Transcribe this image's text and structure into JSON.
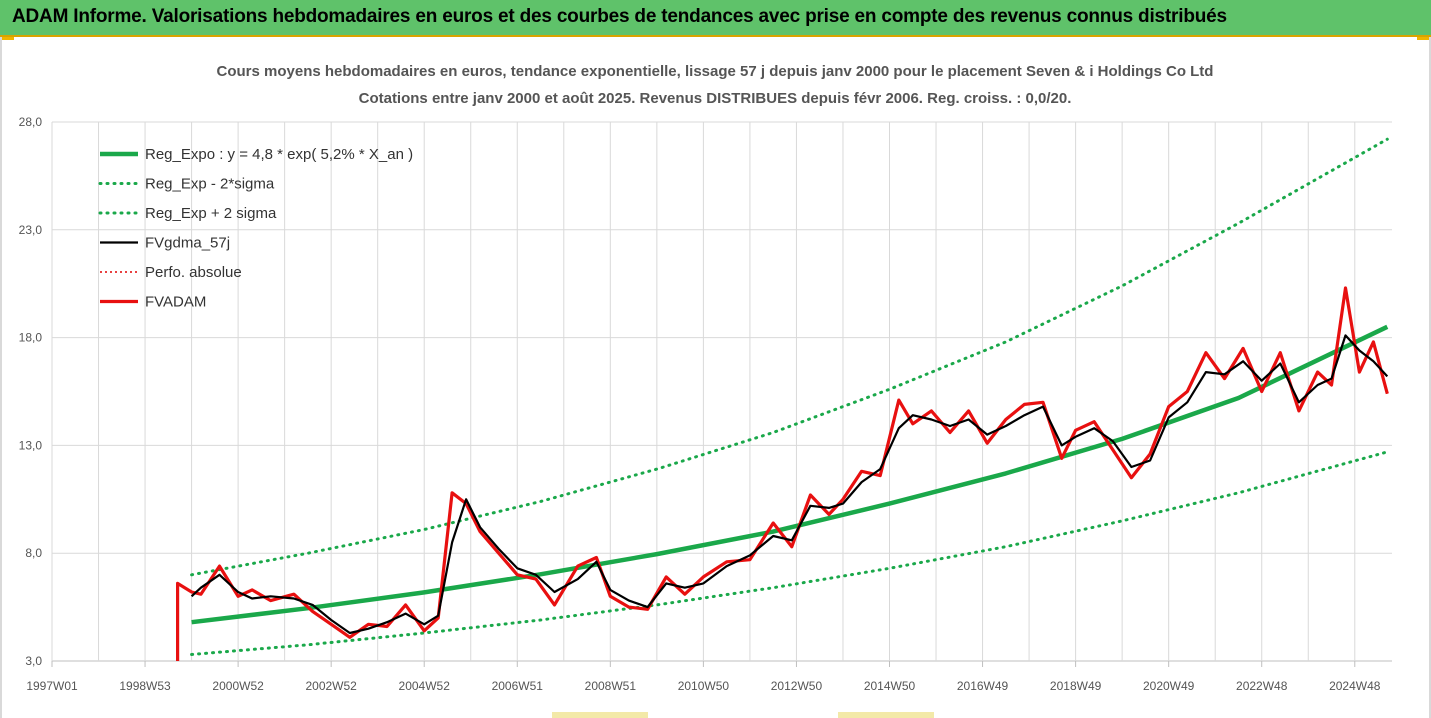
{
  "banner": {
    "title": "ADAM Informe. Valorisations hebdomadaires en euros et des courbes de tendances avec prise en compte des revenus connus distribués"
  },
  "colors": {
    "banner_bg": "#5fc26a",
    "trend": "#1aa84a",
    "sigma": "#1aa84a",
    "fv57": "#000000",
    "perfo": "#e00000",
    "fvadam": "#e81010",
    "grid": "#d9d9d9"
  },
  "chart_data": {
    "type": "line",
    "title": "Cours moyens hebdomadaires en euros, tendance exponentielle, lissage 57 j depuis janv 2000 pour le placement Seven & i Holdings Co Ltd",
    "subtitle": "Cotations entre janv 2000 et août 2025. Revenus DISTRIBUES depuis févr 2006. Reg. croiss. : 0,0/20.",
    "xlabel": "",
    "ylabel": "",
    "ylim": [
      3.0,
      28.0
    ],
    "xlim": [
      1997.0,
      2025.8
    ],
    "y_ticks": [
      "3,0",
      "8,0",
      "13,0",
      "18,0",
      "23,0",
      "28,0"
    ],
    "y_tick_values": [
      3,
      8,
      13,
      18,
      23,
      28
    ],
    "x_ticks": [
      "1997W01",
      "1998W53",
      "2000W52",
      "2002W52",
      "2004W52",
      "2006W51",
      "2008W51",
      "2010W50",
      "2012W50",
      "2014W50",
      "2016W49",
      "2018W49",
      "2020W49",
      "2022W48",
      "2024W48"
    ],
    "x_tick_values": [
      1997.0,
      1999.0,
      2001.0,
      2003.0,
      2005.0,
      2007.0,
      2009.0,
      2011.0,
      2013.0,
      2015.0,
      2017.0,
      2019.0,
      2021.0,
      2023.0,
      2025.0
    ],
    "grid": true,
    "legend_position": "top-left",
    "legend": [
      "Reg_Expo : y = 4,8 * exp( 5,2% *  X_an )",
      "Reg_Exp - 2*sigma",
      "Reg_Exp + 2 sigma",
      "FVgdma_57j",
      "Perfo. absolue",
      "FVADAM"
    ],
    "series": [
      {
        "name": "Reg_Expo : y = 4,8 * exp( 5,2% *  X_an )",
        "style": "solid-thick",
        "x": [
          2000.0,
          2002.5,
          2005.0,
          2007.5,
          2010.0,
          2012.5,
          2015.0,
          2017.5,
          2020.0,
          2022.5,
          2025.7
        ],
        "values": [
          4.8,
          5.45,
          6.18,
          7.02,
          7.96,
          9.0,
          10.3,
          11.7,
          13.3,
          15.2,
          18.5
        ]
      },
      {
        "name": "Reg_Exp - 2*sigma",
        "style": "dotted",
        "x": [
          2000.0,
          2002.5,
          2005.0,
          2007.5,
          2010.0,
          2012.5,
          2015.0,
          2017.5,
          2020.0,
          2022.5,
          2025.7
        ],
        "values": [
          3.3,
          3.75,
          4.3,
          4.9,
          5.6,
          6.4,
          7.3,
          8.3,
          9.5,
          10.8,
          12.7
        ]
      },
      {
        "name": "Reg_Exp + 2 sigma",
        "style": "dotted",
        "x": [
          2000.0,
          2002.5,
          2005.0,
          2007.5,
          2010.0,
          2012.5,
          2015.0,
          2017.5,
          2020.0,
          2022.5,
          2025.7
        ],
        "values": [
          7.0,
          8.0,
          9.1,
          10.4,
          11.9,
          13.6,
          15.6,
          17.8,
          20.4,
          23.3,
          27.2
        ]
      },
      {
        "name": "FVgdma_57j",
        "style": "solid",
        "x": [
          2000.0,
          2000.2,
          2000.6,
          2001.0,
          2001.3,
          2001.7,
          2002.2,
          2002.6,
          2003.0,
          2003.4,
          2003.8,
          2004.2,
          2004.6,
          2005.0,
          2005.3,
          2005.6,
          2005.9,
          2006.2,
          2006.6,
          2007.0,
          2007.4,
          2007.8,
          2008.3,
          2008.7,
          2009.0,
          2009.4,
          2009.8,
          2010.2,
          2010.6,
          2011.0,
          2011.5,
          2012.0,
          2012.5,
          2012.9,
          2013.3,
          2013.7,
          2014.0,
          2014.4,
          2014.8,
          2015.2,
          2015.5,
          2015.9,
          2016.3,
          2016.7,
          2017.1,
          2017.5,
          2017.9,
          2018.3,
          2018.7,
          2019.0,
          2019.4,
          2019.8,
          2020.2,
          2020.6,
          2021.0,
          2021.4,
          2021.8,
          2022.2,
          2022.6,
          2023.0,
          2023.4,
          2023.8,
          2024.2,
          2024.5,
          2024.8,
          2025.1,
          2025.4,
          2025.7
        ],
        "values": [
          6.0,
          6.4,
          7.0,
          6.2,
          5.9,
          6.0,
          5.9,
          5.6,
          4.9,
          4.3,
          4.5,
          4.8,
          5.2,
          4.7,
          5.1,
          8.5,
          10.5,
          9.2,
          8.2,
          7.3,
          7.0,
          6.2,
          6.8,
          7.6,
          6.3,
          5.8,
          5.5,
          6.6,
          6.4,
          6.6,
          7.4,
          7.9,
          8.8,
          8.6,
          10.2,
          10.1,
          10.3,
          11.3,
          11.9,
          13.8,
          14.4,
          14.2,
          13.9,
          14.2,
          13.5,
          13.9,
          14.4,
          14.8,
          13.0,
          13.4,
          13.8,
          13.2,
          12.0,
          12.3,
          14.3,
          15.0,
          16.4,
          16.3,
          16.9,
          16.0,
          16.8,
          15.0,
          15.8,
          16.1,
          18.1,
          17.4,
          16.9,
          16.2
        ]
      },
      {
        "name": "Perfo. absolue",
        "style": "dotted",
        "x": [
          2000.0,
          2000.2,
          2000.6,
          2001.0,
          2001.3,
          2001.7,
          2002.2,
          2002.6,
          2003.0,
          2003.4,
          2003.8,
          2004.2,
          2004.6,
          2005.0,
          2005.3,
          2005.6,
          2005.9,
          2006.2,
          2006.6,
          2007.0,
          2007.4,
          2007.8,
          2008.3,
          2008.7,
          2009.0,
          2009.4,
          2009.8,
          2010.2,
          2010.6,
          2011.0,
          2011.5,
          2012.0,
          2012.5,
          2012.9,
          2013.3,
          2013.7,
          2014.0,
          2014.4,
          2014.8,
          2015.2,
          2015.5,
          2015.9,
          2016.3,
          2016.7,
          2017.1,
          2017.5,
          2017.9,
          2018.3,
          2018.7,
          2019.0,
          2019.4,
          2019.8,
          2020.2,
          2020.6,
          2021.0,
          2021.4,
          2021.8,
          2022.2,
          2022.6,
          2023.0,
          2023.4,
          2023.8,
          2024.2,
          2024.5,
          2024.8,
          2025.1,
          2025.4,
          2025.7
        ],
        "values": [
          6.2,
          6.1,
          7.4,
          6.0,
          6.3,
          5.8,
          6.1,
          5.3,
          4.7,
          4.1,
          4.7,
          4.6,
          5.6,
          4.4,
          5.0,
          10.8,
          10.3,
          9.0,
          8.0,
          7.0,
          6.8,
          5.6,
          7.4,
          7.8,
          6.0,
          5.5,
          5.4,
          6.9,
          6.1,
          6.9,
          7.6,
          7.7,
          9.4,
          8.3,
          10.7,
          9.8,
          10.5,
          11.8,
          11.6,
          15.1,
          14.0,
          14.6,
          13.6,
          14.6,
          13.1,
          14.2,
          14.9,
          15.0,
          12.4,
          13.7,
          14.1,
          12.8,
          11.5,
          12.6,
          14.8,
          15.5,
          17.3,
          16.1,
          17.5,
          15.5,
          17.3,
          14.6,
          16.4,
          15.8,
          20.3,
          16.4,
          17.8,
          15.4
        ]
      },
      {
        "name": "FVADAM",
        "style": "solid-thick",
        "x": [
          1999.7,
          1999.7,
          2000.0,
          2000.2,
          2000.6,
          2001.0,
          2001.3,
          2001.7,
          2002.2,
          2002.6,
          2003.0,
          2003.4,
          2003.8,
          2004.2,
          2004.6,
          2005.0,
          2005.3,
          2005.6,
          2005.9,
          2006.2,
          2006.6,
          2007.0,
          2007.4,
          2007.8,
          2008.3,
          2008.7,
          2009.0,
          2009.4,
          2009.8,
          2010.2,
          2010.6,
          2011.0,
          2011.5,
          2012.0,
          2012.5,
          2012.9,
          2013.3,
          2013.7,
          2014.0,
          2014.4,
          2014.8,
          2015.2,
          2015.5,
          2015.9,
          2016.3,
          2016.7,
          2017.1,
          2017.5,
          2017.9,
          2018.3,
          2018.7,
          2019.0,
          2019.4,
          2019.8,
          2020.2,
          2020.6,
          2021.0,
          2021.4,
          2021.8,
          2022.2,
          2022.6,
          2023.0,
          2023.4,
          2023.8,
          2024.2,
          2024.5,
          2024.8,
          2025.1,
          2025.4,
          2025.7
        ],
        "values": [
          3.0,
          6.6,
          6.2,
          6.1,
          7.4,
          6.0,
          6.3,
          5.8,
          6.1,
          5.3,
          4.7,
          4.1,
          4.7,
          4.6,
          5.6,
          4.4,
          5.0,
          10.8,
          10.3,
          9.0,
          8.0,
          7.0,
          6.8,
          5.6,
          7.4,
          7.8,
          6.0,
          5.5,
          5.4,
          6.9,
          6.1,
          6.9,
          7.6,
          7.7,
          9.4,
          8.3,
          10.7,
          9.8,
          10.5,
          11.8,
          11.6,
          15.1,
          14.0,
          14.6,
          13.6,
          14.6,
          13.1,
          14.2,
          14.9,
          15.0,
          12.4,
          13.7,
          14.1,
          12.8,
          11.5,
          12.6,
          14.8,
          15.5,
          17.3,
          16.1,
          17.5,
          15.5,
          17.3,
          14.6,
          16.4,
          15.8,
          20.3,
          16.4,
          17.8,
          15.4
        ]
      }
    ]
  }
}
